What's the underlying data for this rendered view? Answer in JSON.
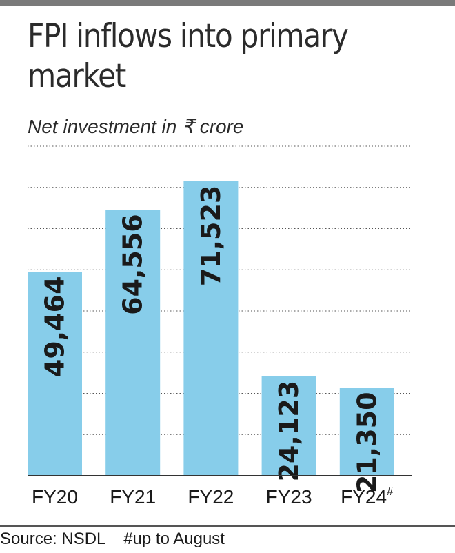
{
  "chart_data": {
    "type": "bar",
    "title": "FPI inflows into primary market",
    "subtitle": "Net investment in ₹ crore",
    "categories": [
      "FY20",
      "FY21",
      "FY22",
      "FY23",
      "FY24"
    ],
    "category_superscripts": [
      "",
      "",
      "",
      "",
      "#"
    ],
    "values": [
      49464,
      64556,
      71523,
      24123,
      21350
    ],
    "value_labels": [
      "49,464",
      "64,556",
      "71,523",
      "24,123",
      "21,350"
    ],
    "ylim": [
      0,
      80000
    ],
    "grid": true,
    "legend": "none",
    "colors": {
      "bar": "#87CDEA",
      "grid": "#555555",
      "text": "#1a1a1a"
    }
  },
  "footer": {
    "source": "Source: NSDL",
    "note": "#up to August"
  }
}
